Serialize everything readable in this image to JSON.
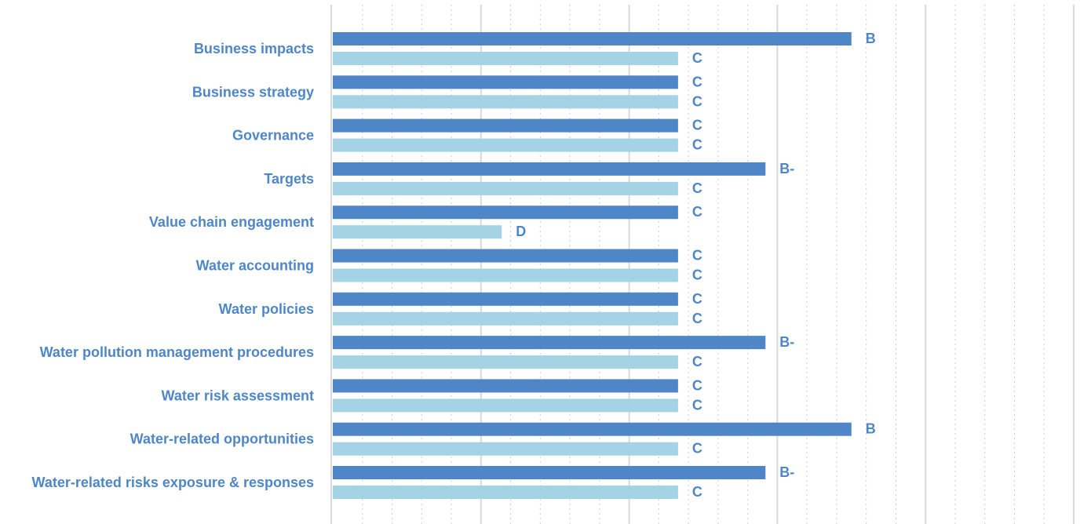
{
  "chart_data": {
    "type": "bar",
    "orientation": "horizontal",
    "categories": [
      "Business impacts",
      "Business strategy",
      "Governance",
      "Targets",
      "Value chain engagement",
      "Water accounting",
      "Water policies",
      "Water pollution management procedures",
      "Water risk assessment",
      "Water-related opportunities",
      "Water-related risks exposure & responses"
    ],
    "series": [
      {
        "color": "#4E86C8",
        "values": [
          3.5,
          2.33,
          2.33,
          2.92,
          2.33,
          2.33,
          2.33,
          2.92,
          2.33,
          3.5,
          2.92
        ],
        "labels": [
          "B",
          "C",
          "C",
          "B-",
          "C",
          "C",
          "C",
          "B-",
          "C",
          "B",
          "B-"
        ]
      },
      {
        "color": "#A3D3E4",
        "values": [
          2.33,
          2.33,
          2.33,
          2.33,
          1.14,
          2.33,
          2.33,
          2.33,
          2.33,
          2.33,
          2.33
        ],
        "labels": [
          "C",
          "C",
          "C",
          "C",
          "D",
          "C",
          "C",
          "C",
          "C",
          "C",
          "C"
        ]
      }
    ],
    "xlim": [
      0,
      5
    ],
    "grid": true,
    "label_color": "#4E86C8"
  }
}
